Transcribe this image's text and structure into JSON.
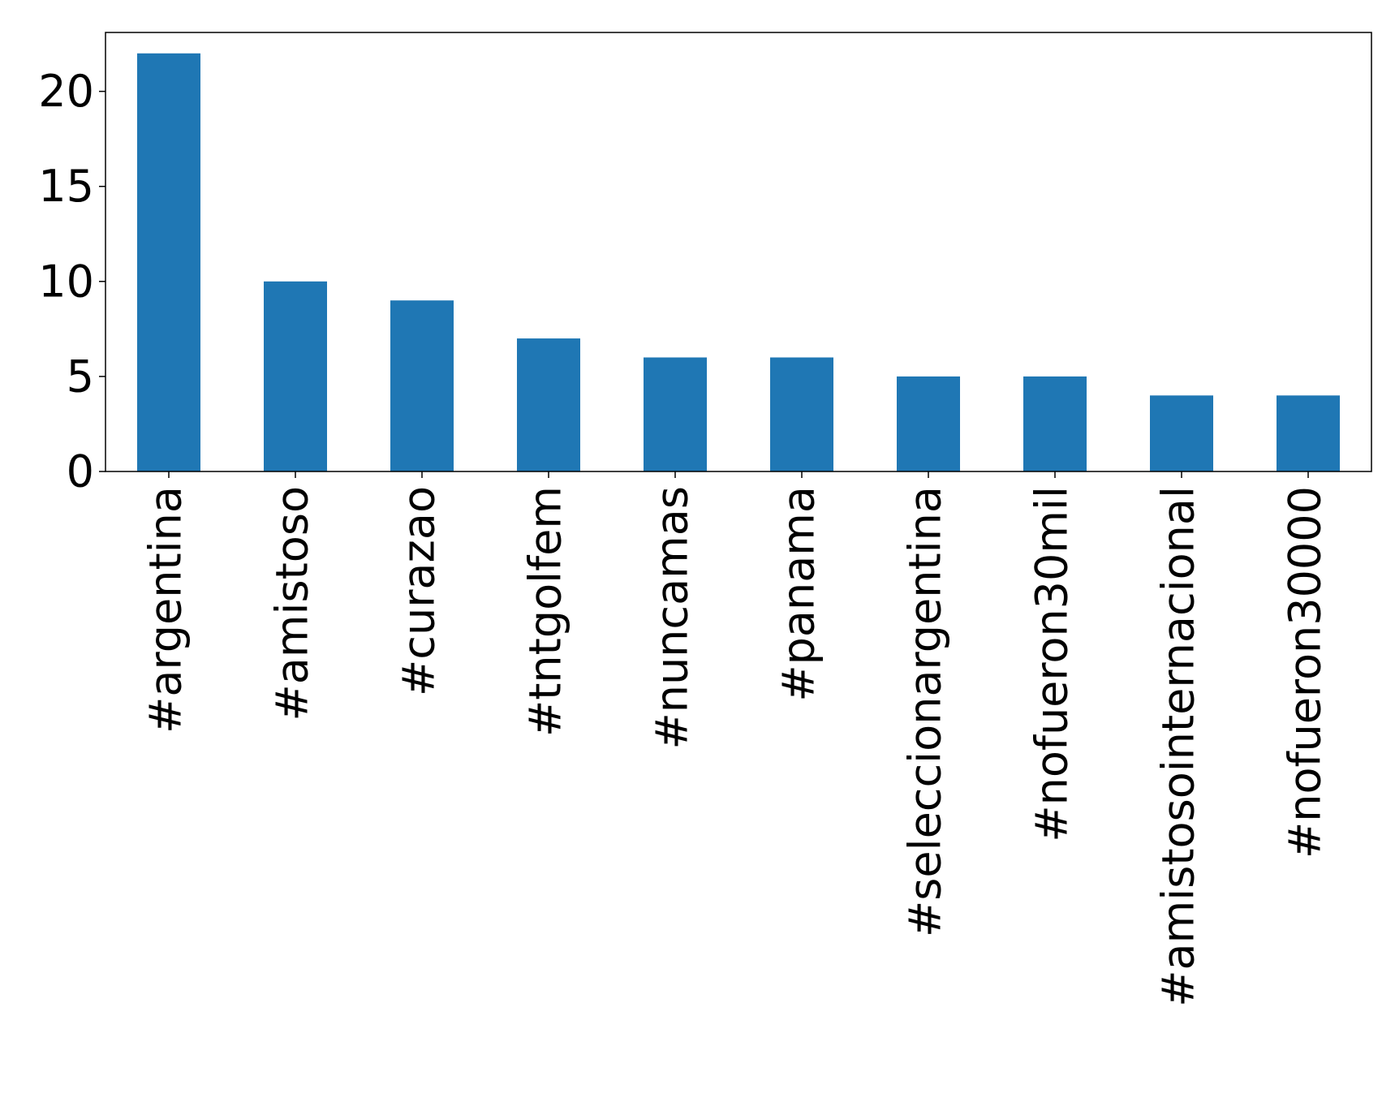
{
  "chart_data": {
    "type": "bar",
    "title": "",
    "xlabel": "",
    "ylabel": "",
    "categories": [
      "#argentina",
      "#amistoso",
      "#curazao",
      "#tntgolfem",
      "#nuncamas",
      "#panama",
      "#seleccionargentina",
      "#nofueron30mil",
      "#amistosointernacional",
      "#nofueron30000"
    ],
    "values": [
      22,
      10,
      9,
      7,
      6,
      6,
      5,
      5,
      4,
      4
    ],
    "ylim": [
      0,
      23.1
    ],
    "yticks": [
      0,
      5,
      10,
      15,
      20
    ],
    "bar_color": "#1f77b4",
    "grid": false,
    "legend": "none"
  }
}
